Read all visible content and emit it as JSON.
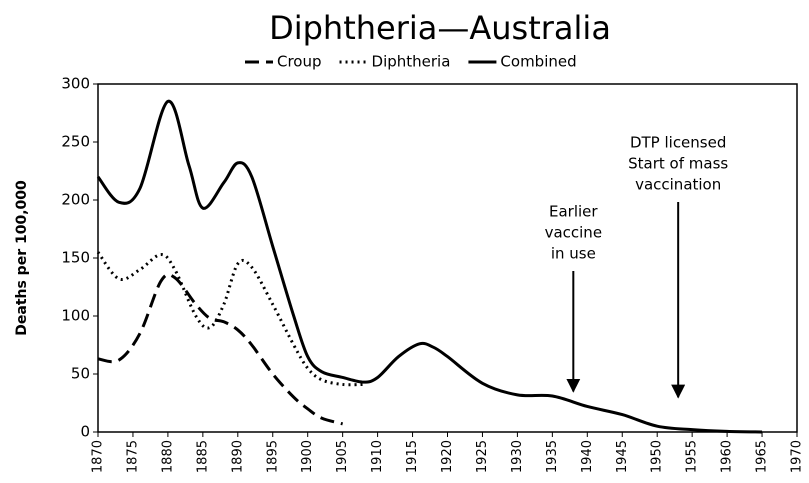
{
  "chart_data": {
    "type": "line",
    "title": "Diphtheria—Australia",
    "y_label": "Deaths per 100,000",
    "xlim": [
      1870,
      1970
    ],
    "xticks": [
      1870,
      1875,
      1880,
      1885,
      1890,
      1895,
      1900,
      1905,
      1910,
      1915,
      1920,
      1925,
      1930,
      1935,
      1940,
      1945,
      1950,
      1955,
      1960,
      1965,
      1970
    ],
    "ylim": [
      0,
      300
    ],
    "yticks": [
      0,
      50,
      100,
      150,
      200,
      250,
      300
    ],
    "legend": "top",
    "series": [
      {
        "name": "Croup",
        "color": "#000000",
        "dash": "dashed",
        "x": [
          1870,
          1873,
          1876,
          1879,
          1881,
          1884,
          1886,
          1888,
          1890,
          1892,
          1895,
          1898,
          1900,
          1902,
          1905
        ],
        "values": [
          63,
          62,
          85,
          130,
          133,
          110,
          98,
          95,
          88,
          75,
          50,
          30,
          20,
          12,
          7
        ]
      },
      {
        "name": "Diphtheria",
        "color": "#000000",
        "dash": "dotted",
        "x": [
          1870,
          1873,
          1876,
          1879,
          1881,
          1884,
          1886,
          1888,
          1890,
          1892,
          1895,
          1898,
          1900,
          1902,
          1905,
          1908
        ],
        "values": [
          155,
          132,
          140,
          153,
          140,
          100,
          90,
          110,
          145,
          142,
          110,
          75,
          55,
          45,
          41,
          41
        ]
      },
      {
        "name": "Combined",
        "color": "#000000",
        "dash": "solid",
        "x": [
          1870,
          1873,
          1876,
          1880,
          1883,
          1885,
          1888,
          1890,
          1892,
          1895,
          1898,
          1900,
          1902,
          1905,
          1908,
          1910,
          1913,
          1916,
          1918,
          1920,
          1925,
          1930,
          1935,
          1940,
          1945,
          1950,
          1955,
          1960,
          1965
        ],
        "values": [
          220,
          198,
          210,
          285,
          230,
          193,
          215,
          232,
          220,
          160,
          100,
          65,
          52,
          47,
          43,
          47,
          65,
          76,
          73,
          65,
          42,
          32,
          31,
          22,
          15,
          5,
          2,
          0.5,
          0
        ]
      }
    ],
    "annotations": [
      {
        "lines": [
          "Earlier",
          "vaccine",
          "in use"
        ],
        "x": 1938,
        "y": 35
      },
      {
        "lines": [
          "DTP licensed",
          "Start of mass",
          "vaccination"
        ],
        "x": 1953,
        "y": 30
      }
    ]
  }
}
